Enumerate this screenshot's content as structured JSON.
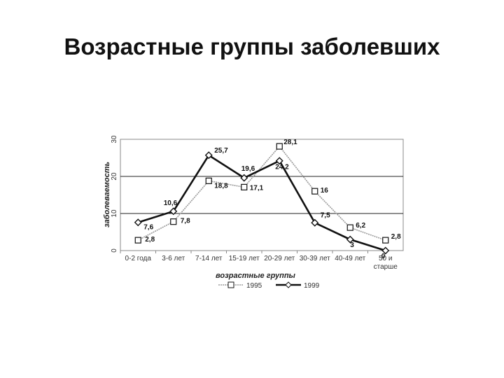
{
  "page": {
    "title": "Возрастные группы заболевших"
  },
  "chart_data": {
    "type": "line",
    "title": "",
    "xlabel": "возрастные группы",
    "ylabel": "заболеваемость",
    "categories": [
      "0-2 года",
      "3-6 лет",
      "7-14 лет",
      "15-19 лет",
      "20-29 лет",
      "30-39 лет",
      "40-49 лет",
      "50 и старше"
    ],
    "ylim": [
      0,
      30
    ],
    "yticks": [
      0,
      10,
      20,
      30
    ],
    "grid": "horizontal",
    "legend_position": "bottom",
    "series": [
      {
        "name": "1995",
        "values": [
          2.8,
          7.8,
          18.8,
          17.1,
          28.1,
          16,
          6.2,
          2.8
        ],
        "labels": [
          "2,8",
          "7,8",
          "18,8",
          "17,1",
          "28,1",
          "16",
          "6,2",
          "2,8"
        ],
        "color": "#9a9a9a",
        "marker": "square"
      },
      {
        "name": "1999",
        "values": [
          7.6,
          10.6,
          25.7,
          19.6,
          24.2,
          7.5,
          3,
          0
        ],
        "labels": [
          "7,6",
          "10,6",
          "25,7",
          "19,6",
          "24,2",
          "7,5",
          "3",
          "0"
        ],
        "color": "#111111",
        "marker": "diamond"
      }
    ]
  }
}
